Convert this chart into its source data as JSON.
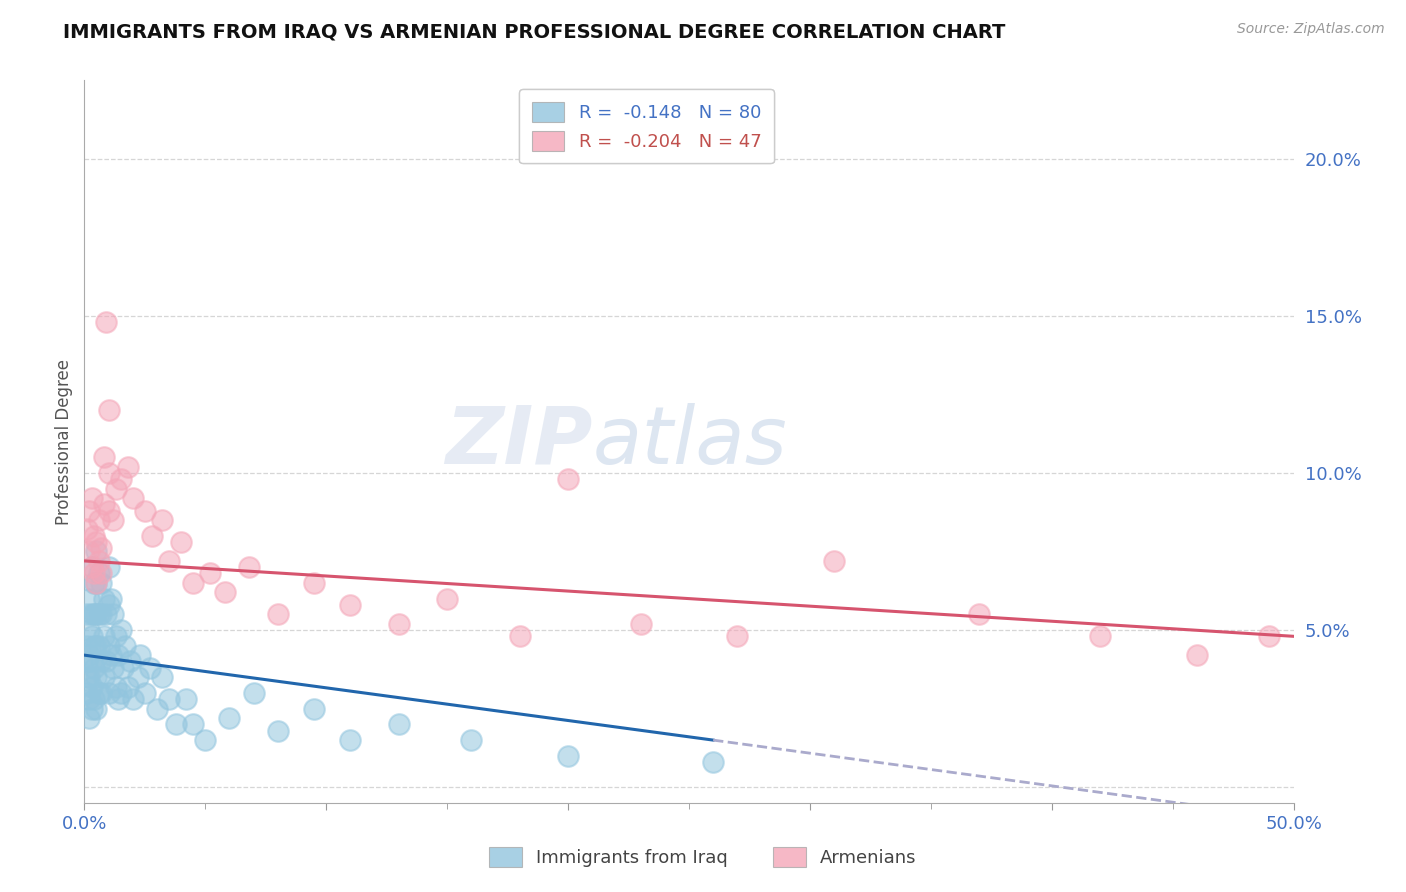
{
  "title": "IMMIGRANTS FROM IRAQ VS ARMENIAN PROFESSIONAL DEGREE CORRELATION CHART",
  "source": "Source: ZipAtlas.com",
  "ylabel": "Professional Degree",
  "xlim": [
    0.0,
    0.5
  ],
  "ylim": [
    -0.005,
    0.225
  ],
  "yticks": [
    0.0,
    0.05,
    0.1,
    0.15,
    0.2
  ],
  "ytick_labels": [
    "",
    "5.0%",
    "10.0%",
    "15.0%",
    "20.0%"
  ],
  "xticks": [
    0.0,
    0.1,
    0.2,
    0.3,
    0.4,
    0.5
  ],
  "xtick_labels": [
    "0.0%",
    "",
    "",
    "",
    "",
    "50.0%"
  ],
  "xtick_minor": [
    0.05,
    0.15,
    0.25,
    0.35,
    0.45
  ],
  "legend_r1": "R =  -0.148",
  "legend_n1": "N = 80",
  "legend_r2": "R =  -0.204",
  "legend_n2": "N = 47",
  "blue_color": "#92c5de",
  "pink_color": "#f4a6b8",
  "blue_line_color": "#2166ac",
  "pink_line_color": "#d6546e",
  "blue_dashed_color": "#aaaacc",
  "background_color": "#ffffff",
  "watermark_zip": "ZIP",
  "watermark_atlas": "atlas",
  "blue_scatter_x": [
    0.001,
    0.001,
    0.001,
    0.001,
    0.001,
    0.002,
    0.002,
    0.002,
    0.002,
    0.002,
    0.002,
    0.003,
    0.003,
    0.003,
    0.003,
    0.003,
    0.003,
    0.004,
    0.004,
    0.004,
    0.004,
    0.004,
    0.005,
    0.005,
    0.005,
    0.005,
    0.005,
    0.005,
    0.006,
    0.006,
    0.006,
    0.006,
    0.007,
    0.007,
    0.007,
    0.007,
    0.008,
    0.008,
    0.008,
    0.009,
    0.009,
    0.01,
    0.01,
    0.01,
    0.01,
    0.011,
    0.011,
    0.012,
    0.012,
    0.013,
    0.013,
    0.014,
    0.014,
    0.015,
    0.015,
    0.016,
    0.017,
    0.018,
    0.019,
    0.02,
    0.022,
    0.023,
    0.025,
    0.027,
    0.03,
    0.032,
    0.035,
    0.038,
    0.042,
    0.045,
    0.05,
    0.06,
    0.07,
    0.08,
    0.095,
    0.11,
    0.13,
    0.16,
    0.2,
    0.26
  ],
  "blue_scatter_y": [
    0.055,
    0.045,
    0.04,
    0.035,
    0.03,
    0.06,
    0.05,
    0.042,
    0.035,
    0.028,
    0.022,
    0.07,
    0.055,
    0.048,
    0.04,
    0.032,
    0.025,
    0.065,
    0.055,
    0.045,
    0.038,
    0.028,
    0.075,
    0.065,
    0.055,
    0.045,
    0.035,
    0.025,
    0.068,
    0.055,
    0.045,
    0.03,
    0.065,
    0.055,
    0.04,
    0.03,
    0.06,
    0.048,
    0.035,
    0.055,
    0.04,
    0.07,
    0.058,
    0.045,
    0.03,
    0.06,
    0.042,
    0.055,
    0.038,
    0.048,
    0.032,
    0.042,
    0.028,
    0.05,
    0.03,
    0.038,
    0.045,
    0.032,
    0.04,
    0.028,
    0.035,
    0.042,
    0.03,
    0.038,
    0.025,
    0.035,
    0.028,
    0.02,
    0.028,
    0.02,
    0.015,
    0.022,
    0.03,
    0.018,
    0.025,
    0.015,
    0.02,
    0.015,
    0.01,
    0.008
  ],
  "pink_scatter_x": [
    0.001,
    0.002,
    0.002,
    0.003,
    0.003,
    0.004,
    0.004,
    0.005,
    0.005,
    0.006,
    0.006,
    0.007,
    0.007,
    0.008,
    0.008,
    0.009,
    0.01,
    0.01,
    0.012,
    0.013,
    0.015,
    0.018,
    0.02,
    0.025,
    0.028,
    0.032,
    0.035,
    0.04,
    0.045,
    0.052,
    0.058,
    0.068,
    0.08,
    0.095,
    0.11,
    0.13,
    0.15,
    0.18,
    0.2,
    0.23,
    0.27,
    0.31,
    0.37,
    0.42,
    0.46,
    0.49,
    0.01
  ],
  "pink_scatter_y": [
    0.082,
    0.075,
    0.088,
    0.07,
    0.092,
    0.068,
    0.08,
    0.065,
    0.078,
    0.072,
    0.085,
    0.068,
    0.076,
    0.09,
    0.105,
    0.148,
    0.088,
    0.1,
    0.085,
    0.095,
    0.098,
    0.102,
    0.092,
    0.088,
    0.08,
    0.085,
    0.072,
    0.078,
    0.065,
    0.068,
    0.062,
    0.07,
    0.055,
    0.065,
    0.058,
    0.052,
    0.06,
    0.048,
    0.098,
    0.052,
    0.048,
    0.072,
    0.055,
    0.048,
    0.042,
    0.048,
    0.12
  ],
  "blue_line_start_x": 0.0,
  "blue_line_end_solid_x": 0.26,
  "blue_line_end_x": 0.5,
  "blue_line_start_y": 0.042,
  "blue_line_end_y": -0.01,
  "pink_line_start_x": 0.0,
  "pink_line_end_x": 0.5,
  "pink_line_start_y": 0.072,
  "pink_line_end_y": 0.048
}
